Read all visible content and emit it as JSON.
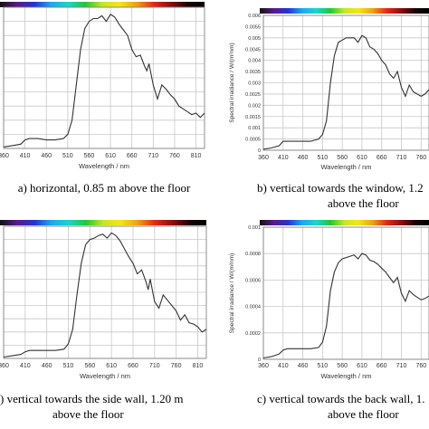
{
  "spectrum_stops": [
    "#111111",
    "#5a1a8c",
    "#2033d6",
    "#1aa9ee",
    "#18d6c8",
    "#22c832",
    "#c8e61e",
    "#f4e614",
    "#f0a014",
    "#e82818",
    "#8a1010",
    "#1a0505",
    "#000000"
  ],
  "panels": [
    {
      "caption_lines": [
        "a) horizontal, 0.85 m above the floor"
      ],
      "chart_data": {
        "type": "line",
        "xlabel": "Wavelength / nm",
        "ylabel": "",
        "x_ticks": [
          "360",
          "410",
          "460",
          "510",
          "560",
          "610",
          "660",
          "710",
          "760",
          "810"
        ],
        "y_ticks": [],
        "xlim": [
          360,
          830
        ],
        "ylim": [
          0,
          1
        ],
        "grid": true,
        "series": [
          {
            "x": [
              360,
              380,
              400,
              410,
              420,
              440,
              460,
              480,
              500,
              510,
              520,
              530,
              540,
              550,
              560,
              570,
              580,
              590,
              600,
              610,
              620,
              630,
              640,
              650,
              660,
              670,
              680,
              690,
              695,
              700,
              710,
              720,
              730,
              740,
              750,
              760,
              770,
              780,
              790,
              800,
              810,
              820,
              830
            ],
            "y": [
              0.01,
              0.02,
              0.03,
              0.06,
              0.07,
              0.07,
              0.06,
              0.06,
              0.07,
              0.1,
              0.2,
              0.45,
              0.7,
              0.85,
              0.9,
              0.92,
              0.92,
              0.94,
              0.9,
              0.95,
              0.93,
              0.88,
              0.84,
              0.8,
              0.7,
              0.65,
              0.66,
              0.58,
              0.55,
              0.6,
              0.45,
              0.35,
              0.45,
              0.42,
              0.38,
              0.35,
              0.3,
              0.28,
              0.26,
              0.24,
              0.25,
              0.22,
              0.25
            ]
          }
        ]
      }
    },
    {
      "caption_lines": [
        "b) vertical towards the window, 1.2",
        "above the floor"
      ],
      "chart_data": {
        "type": "line",
        "xlabel": "Wavelength / nm",
        "ylabel": "Spectral irradiance / W/(m²nm)",
        "x_ticks": [
          "360",
          "410",
          "460",
          "510",
          "560",
          "610",
          "660",
          "710",
          "760"
        ],
        "y_ticks": [
          "0",
          "0.0005",
          "0.001",
          "0.0015",
          "0.002",
          "0.0025",
          "0.003",
          "0.0035",
          "0.004",
          "0.0045",
          "0.005",
          "0.0055",
          "0.006"
        ],
        "xlim": [
          360,
          780
        ],
        "ylim": [
          0,
          0.006
        ],
        "grid": true,
        "series": [
          {
            "x": [
              360,
              380,
              400,
              410,
              420,
              440,
              460,
              480,
              500,
              510,
              520,
              530,
              540,
              550,
              560,
              570,
              580,
              590,
              600,
              610,
              620,
              630,
              640,
              650,
              660,
              670,
              680,
              690,
              700,
              710,
              720,
              730,
              740,
              750,
              760,
              770,
              780
            ],
            "y": [
              5e-05,
              0.0001,
              0.0002,
              0.0004,
              0.0004,
              0.0004,
              0.0004,
              0.0004,
              0.0005,
              0.0007,
              0.0013,
              0.003,
              0.0042,
              0.0048,
              0.0049,
              0.005,
              0.005,
              0.005,
              0.0048,
              0.0051,
              0.005,
              0.0046,
              0.0045,
              0.0043,
              0.004,
              0.0038,
              0.0034,
              0.0032,
              0.0035,
              0.0028,
              0.0024,
              0.0029,
              0.0026,
              0.0025,
              0.0024,
              0.0025,
              0.0027
            ]
          }
        ]
      }
    },
    {
      "caption_lines": [
        ") vertical towards the side wall, 1.20 m",
        "above the floor"
      ],
      "chart_data": {
        "type": "line",
        "xlabel": "Wavelength / nm",
        "ylabel": "",
        "x_ticks": [
          "360",
          "410",
          "460",
          "510",
          "560",
          "610",
          "660",
          "710",
          "760",
          "810"
        ],
        "y_ticks": [],
        "xlim": [
          360,
          830
        ],
        "ylim": [
          0,
          1
        ],
        "grid": true,
        "series": [
          {
            "x": [
              360,
              380,
              400,
              410,
              420,
              440,
              460,
              480,
              500,
              510,
              520,
              530,
              540,
              550,
              560,
              570,
              580,
              590,
              600,
              610,
              620,
              630,
              640,
              650,
              660,
              670,
              680,
              690,
              695,
              700,
              710,
              720,
              730,
              740,
              750,
              760,
              770,
              780,
              790,
              800,
              810,
              820,
              830
            ],
            "y": [
              0.01,
              0.02,
              0.03,
              0.05,
              0.06,
              0.06,
              0.06,
              0.06,
              0.07,
              0.11,
              0.22,
              0.48,
              0.72,
              0.86,
              0.9,
              0.91,
              0.93,
              0.94,
              0.91,
              0.95,
              0.93,
              0.89,
              0.83,
              0.77,
              0.72,
              0.64,
              0.67,
              0.58,
              0.52,
              0.6,
              0.43,
              0.38,
              0.48,
              0.44,
              0.4,
              0.36,
              0.29,
              0.33,
              0.27,
              0.26,
              0.24,
              0.2,
              0.22
            ]
          }
        ]
      }
    },
    {
      "caption_lines": [
        "c) vertical towards the back wall, 1.",
        "above the floor"
      ],
      "chart_data": {
        "type": "line",
        "xlabel": "Wavelength / nm",
        "ylabel": "Spectral irradiance / W/(m²nm)",
        "x_ticks": [
          "360",
          "410",
          "460",
          "510",
          "560",
          "610",
          "660",
          "710",
          "760"
        ],
        "y_ticks": [
          "0",
          "0.0002",
          "0.0004",
          "0.0006",
          "0.0008",
          "0.001"
        ],
        "xlim": [
          360,
          780
        ],
        "ylim": [
          0,
          0.001
        ],
        "grid": true,
        "series": [
          {
            "x": [
              360,
              380,
              400,
              410,
              420,
              440,
              460,
              480,
              500,
              510,
              520,
              530,
              540,
              550,
              560,
              570,
              580,
              590,
              600,
              610,
              620,
              630,
              640,
              650,
              660,
              670,
              680,
              690,
              700,
              710,
              720,
              730,
              740,
              750,
              760,
              770,
              780
            ],
            "y": [
              1e-05,
              2e-05,
              4e-05,
              7e-05,
              8e-05,
              8e-05,
              8e-05,
              8e-05,
              9e-05,
              0.00013,
              0.00025,
              0.00052,
              0.00066,
              0.00073,
              0.00076,
              0.00077,
              0.00078,
              0.00079,
              0.00076,
              0.0008,
              0.00079,
              0.00075,
              0.00074,
              0.00072,
              0.00069,
              0.00066,
              0.00062,
              0.00058,
              0.00062,
              0.0005,
              0.00044,
              0.00052,
              0.00049,
              0.00047,
              0.00045,
              0.00046,
              0.00048
            ]
          }
        ]
      }
    }
  ]
}
